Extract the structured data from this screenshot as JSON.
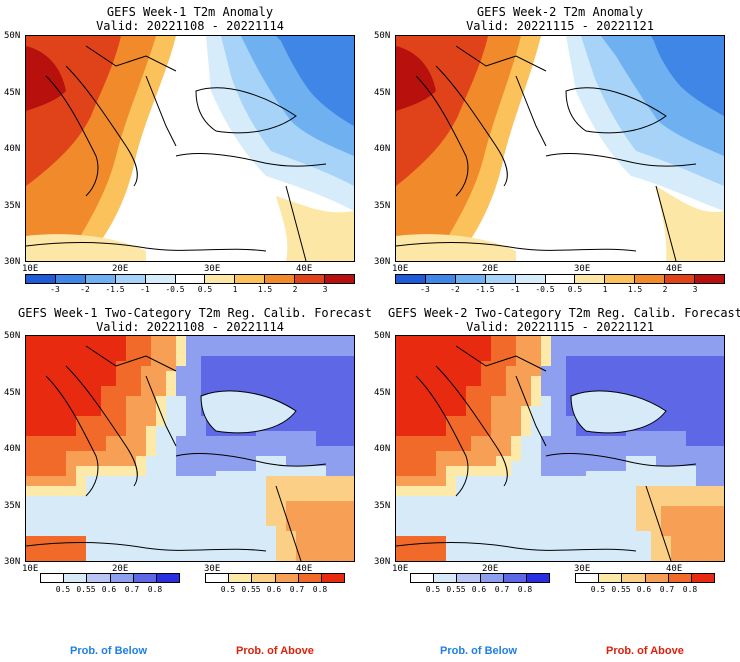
{
  "panels": [
    {
      "title": "GEFS Week-1 T2m Anomaly",
      "valid": "Valid: 20221108 - 20221114"
    },
    {
      "title": "GEFS Week-2 T2m Anomaly",
      "valid": "Valid: 20221115 - 20221121"
    },
    {
      "title": "GEFS Week-1 Two-Category T2m Reg. Calib. Forecast",
      "valid": "Valid: 20221108 - 20221114"
    },
    {
      "title": "GEFS Week-2 Two-Category T2m Reg. Calib. Forecast",
      "valid": "Valid: 20221115 - 20221121"
    }
  ],
  "lat_labels": [
    "50N",
    "45N",
    "40N",
    "35N",
    "30N"
  ],
  "lon_labels": [
    "10E",
    "20E",
    "30E",
    "40E"
  ],
  "anomaly_scale": {
    "labels": [
      "-3",
      "-2",
      "-1.5",
      "-1",
      "-0.5",
      "0.5",
      "1",
      "1.5",
      "2",
      "3"
    ],
    "colors": [
      "#1f5bd6",
      "#3f86e6",
      "#6fb0f0",
      "#a6d3f7",
      "#d6ecfb",
      "#ffffff",
      "#fde7a6",
      "#fbc25c",
      "#f08a2a",
      "#e0431a",
      "#b8100d"
    ]
  },
  "below_scale": {
    "labels": [
      "0.5",
      "0.55",
      "0.6",
      "0.7",
      "0.8"
    ],
    "colors": [
      "#d7eaf8",
      "#b7c6f4",
      "#8f9ff0",
      "#5e68e6",
      "#2a2ee0"
    ]
  },
  "above_scale": {
    "labels": [
      "0.5",
      "0.55",
      "0.6",
      "0.7",
      "0.8"
    ],
    "colors": [
      "#fdeaa8",
      "#fbcf85",
      "#f7a055",
      "#f26a2a",
      "#e82a10"
    ]
  },
  "legend": {
    "below": "Prob. of Below",
    "above": "Prob. of Above"
  }
}
